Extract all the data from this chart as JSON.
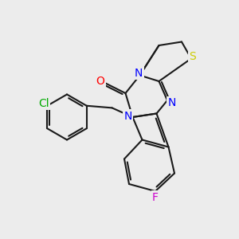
{
  "bg_color": "#ececec",
  "bond_color": "#1a1a1a",
  "bond_width": 1.5,
  "atom_colors": {
    "N": "#0000ff",
    "O": "#ff0000",
    "S": "#cccc00",
    "F": "#cc00cc",
    "Cl": "#00aa00"
  },
  "font_size": 10,
  "label_font_size": 9
}
